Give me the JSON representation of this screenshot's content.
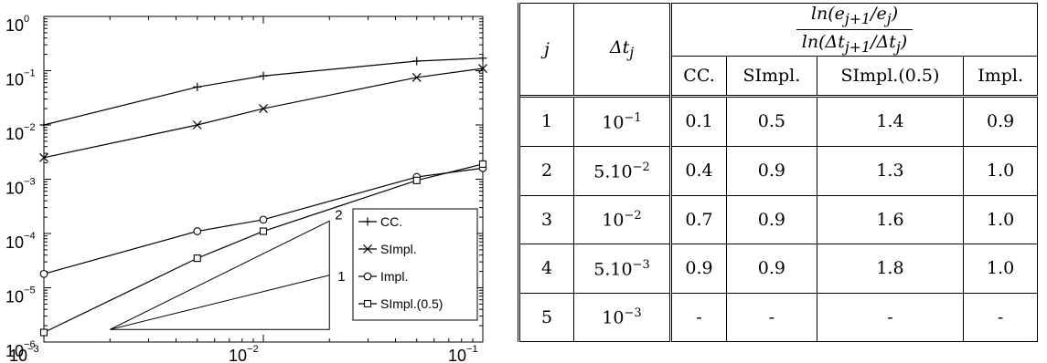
{
  "chart_data": {
    "type": "line",
    "xscale": "log",
    "yscale": "log",
    "xlim": [
      0.001,
      0.1
    ],
    "ylim": [
      1e-06,
      1
    ],
    "x_ticks": [
      {
        "base": "10",
        "exp": "−3",
        "value": 0.001
      },
      {
        "base": "10",
        "exp": "−2",
        "value": 0.01
      },
      {
        "base": "10",
        "exp": "−1",
        "value": 0.1
      }
    ],
    "y_ticks": [
      {
        "base": "10",
        "exp": "0",
        "value": 1
      },
      {
        "base": "10",
        "exp": "−1",
        "value": 0.1
      },
      {
        "base": "10",
        "exp": "−2",
        "value": 0.01
      },
      {
        "base": "10",
        "exp": "−3",
        "value": 0.001
      },
      {
        "base": "10",
        "exp": "−4",
        "value": 0.0001
      },
      {
        "base": "10",
        "exp": "−5",
        "value": 1e-05
      },
      {
        "base": "10",
        "exp": "−6",
        "value": 1e-06
      }
    ],
    "legend_position": "bottom-right",
    "series": [
      {
        "name": "CC.",
        "marker": "plus",
        "x": [
          0.001,
          0.005,
          0.01,
          0.05,
          0.1
        ],
        "y": [
          0.01,
          0.05,
          0.08,
          0.15,
          0.17
        ]
      },
      {
        "name": "SImpl.",
        "marker": "cross",
        "x": [
          0.001,
          0.005,
          0.01,
          0.05,
          0.1
        ],
        "y": [
          0.0025,
          0.01,
          0.02,
          0.075,
          0.11
        ]
      },
      {
        "name": "Impl.",
        "marker": "circle",
        "x": [
          0.001,
          0.005,
          0.01,
          0.05,
          0.1
        ],
        "y": [
          1.8e-05,
          0.00011,
          0.00018,
          0.0011,
          0.0016
        ]
      },
      {
        "name": "SImpl.(0.5)",
        "marker": "square",
        "x": [
          0.001,
          0.005,
          0.01,
          0.05,
          0.1
        ],
        "y": [
          1.5e-06,
          3.5e-05,
          0.00011,
          0.00095,
          0.0019
        ]
      }
    ],
    "slope_triangle": {
      "x": [
        0.002,
        0.02
      ],
      "y_start": 1.7e-06,
      "labels": [
        "2",
        "1"
      ]
    }
  },
  "table": {
    "header": {
      "j": "j",
      "dt_base": "Δt",
      "dt_sub": "j",
      "ratio_num": "ln(e<sub>j+1</sub>/e<sub>j</sub>)",
      "ratio_den": "ln(Δt<sub>j+1</sub>/Δt<sub>j</sub>)",
      "cols": [
        "CC.",
        "SImpl.",
        "SImpl.(0.5)",
        "Impl."
      ]
    },
    "rows": [
      {
        "j": "1",
        "dt_base": "10",
        "dt_exp": "−1",
        "cc": "0.1",
        "simpl": "0.5",
        "simpl05": "1.4",
        "impl": "0.9"
      },
      {
        "j": "2",
        "dt_base": "5.10",
        "dt_exp": "−2",
        "cc": "0.4",
        "simpl": "0.9",
        "simpl05": "1.3",
        "impl": "1.0"
      },
      {
        "j": "3",
        "dt_base": "10",
        "dt_exp": "−2",
        "cc": "0.7",
        "simpl": "0.9",
        "simpl05": "1.6",
        "impl": "1.0"
      },
      {
        "j": "4",
        "dt_base": "5.10",
        "dt_exp": "−3",
        "cc": "0.9",
        "simpl": "0.9",
        "simpl05": "1.8",
        "impl": "1.0"
      },
      {
        "j": "5",
        "dt_base": "10",
        "dt_exp": "−3",
        "cc": "-",
        "simpl": "-",
        "simpl05": "-",
        "impl": "-"
      }
    ]
  }
}
